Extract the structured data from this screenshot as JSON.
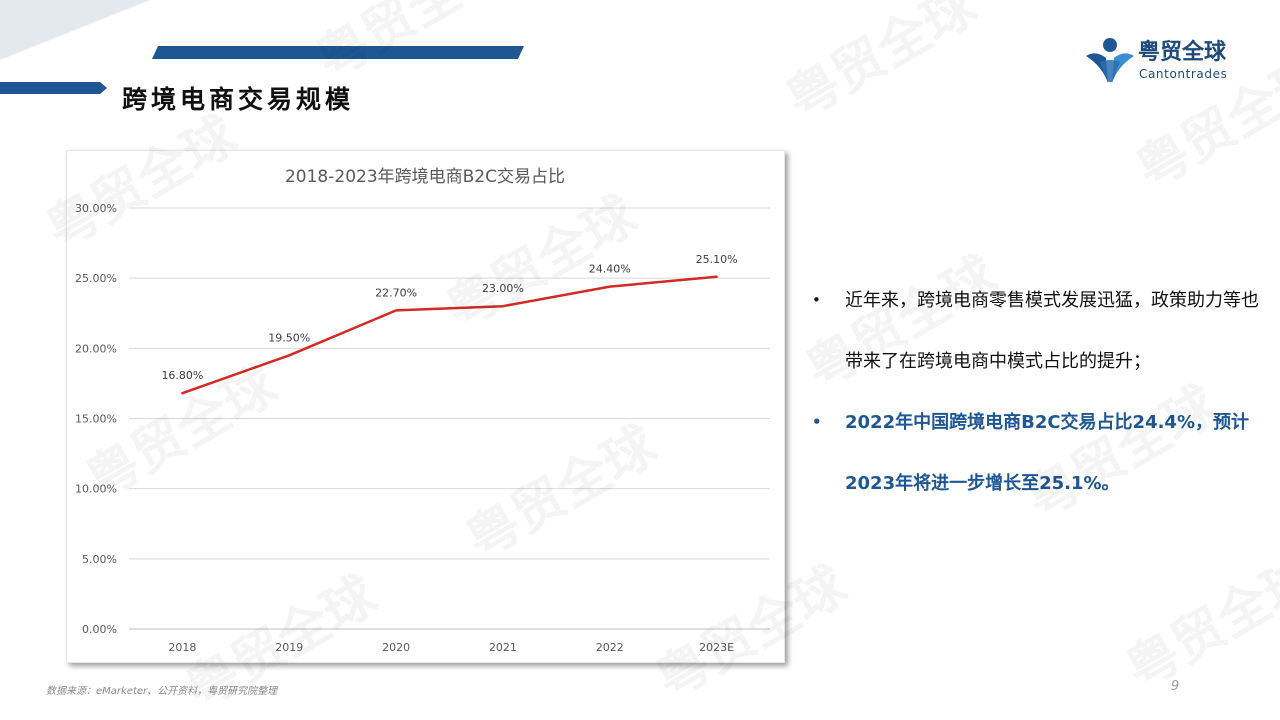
{
  "header": {
    "title": "跨境电商交易规模"
  },
  "logo": {
    "cn": "粤贸全球",
    "en": "Cantontrades"
  },
  "chart_data": {
    "type": "line",
    "title": "2018-2023年跨境电商B2C交易占比",
    "categories": [
      "2018",
      "2019",
      "2020",
      "2021",
      "2022",
      "2023E"
    ],
    "series": [
      {
        "values": [
          16.8,
          19.5,
          22.7,
          23.0,
          24.4,
          25.1
        ]
      }
    ],
    "data_labels": [
      "16.80%",
      "19.50%",
      "22.70%",
      "23.00%",
      "24.40%",
      "25.10%"
    ],
    "y_ticks": [
      "0.00%",
      "5.00%",
      "10.00%",
      "15.00%",
      "20.00%",
      "25.00%",
      "30.00%"
    ],
    "ylim": [
      0,
      30
    ],
    "grid": true,
    "line_color": "#d42a24",
    "xlabel": "",
    "ylabel": ""
  },
  "bullets": [
    {
      "text": "近年来，跨境电商零售模式发展迅猛，政策助力等也带来了在跨境电商中模式占比的提升；",
      "emphasis": false
    },
    {
      "text": "2022年中国跨境电商B2C交易占比24.4%，预计2023年将进一步增长至25.1%。",
      "emphasis": true
    }
  ],
  "bullet_marker": "•",
  "footer": {
    "source": "数据来源：eMarketer、公开资料，粤贸研究院整理",
    "page_number": "9"
  },
  "watermark": {
    "text": "粤贸全球"
  },
  "colors": {
    "accent": "#1e5794",
    "line": "#d42a24",
    "emphasis_text": "#1e5794"
  }
}
